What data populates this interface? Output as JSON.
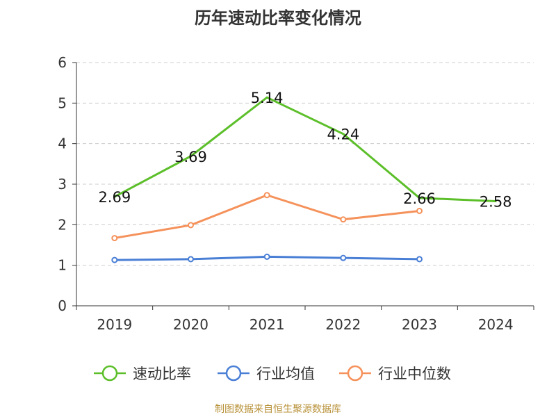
{
  "title": "历年速动比率变化情况",
  "source": "制图数据来自恒生聚源数据库",
  "colors": {
    "series1": "#5cbf2a",
    "series2": "#4a7fd6",
    "series3": "#f5915a",
    "axis": "#333333",
    "grid": "#cccccc",
    "text": "#333333",
    "source": "#b8923a"
  },
  "chart_data": {
    "type": "line",
    "title": "历年速动比率变化情况",
    "xlabel": "",
    "ylabel": "",
    "categories": [
      "2019",
      "2020",
      "2021",
      "2022",
      "2023",
      "2024"
    ],
    "ylim": [
      0,
      6
    ],
    "yticks": [
      0,
      1,
      2,
      3,
      4,
      5,
      6
    ],
    "grid": true,
    "legend_position": "bottom",
    "series": [
      {
        "name": "速动比率",
        "values": [
          2.69,
          3.69,
          5.14,
          4.24,
          2.66,
          2.58
        ],
        "labels": [
          "2.69",
          "3.69",
          "5.14",
          "4.24",
          "2.66",
          "2.58"
        ],
        "show_labels": true
      },
      {
        "name": "行业均值",
        "values": [
          1.13,
          1.15,
          1.21,
          1.18,
          1.15,
          null
        ],
        "show_labels": false
      },
      {
        "name": "行业中位数",
        "values": [
          1.67,
          1.99,
          2.73,
          2.13,
          2.34,
          null
        ],
        "show_labels": false
      }
    ]
  }
}
